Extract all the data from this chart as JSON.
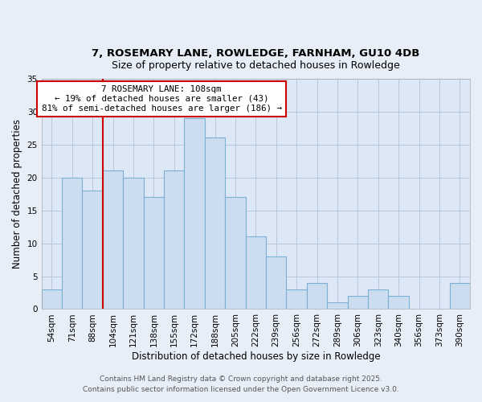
{
  "title": "7, ROSEMARY LANE, ROWLEDGE, FARNHAM, GU10 4DB",
  "subtitle": "Size of property relative to detached houses in Rowledge",
  "xlabel": "Distribution of detached houses by size in Rowledge",
  "ylabel": "Number of detached properties",
  "bar_labels": [
    "54sqm",
    "71sqm",
    "88sqm",
    "104sqm",
    "121sqm",
    "138sqm",
    "155sqm",
    "172sqm",
    "188sqm",
    "205sqm",
    "222sqm",
    "239sqm",
    "256sqm",
    "272sqm",
    "289sqm",
    "306sqm",
    "323sqm",
    "340sqm",
    "356sqm",
    "373sqm",
    "390sqm"
  ],
  "bar_values": [
    3,
    20,
    18,
    21,
    20,
    17,
    21,
    29,
    26,
    17,
    11,
    8,
    3,
    4,
    1,
    2,
    3,
    2,
    0,
    0,
    4
  ],
  "bar_color": "#ccddf0",
  "bar_edgecolor": "#7bafd4",
  "annotation_line1": "7 ROSEMARY LANE: 108sqm",
  "annotation_line2": "← 19% of detached houses are smaller (43)",
  "annotation_line3": "81% of semi-detached houses are larger (186) →",
  "vline_color": "#cc0000",
  "annotation_box_edgecolor": "#cc0000",
  "ylim": [
    0,
    35
  ],
  "yticks": [
    0,
    5,
    10,
    15,
    20,
    25,
    30,
    35
  ],
  "footer_line1": "Contains HM Land Registry data © Crown copyright and database right 2025.",
  "footer_line2": "Contains public sector information licensed under the Open Government Licence v3.0.",
  "bg_color": "#e8eef8",
  "plot_bg_color": "#dce8f5"
}
